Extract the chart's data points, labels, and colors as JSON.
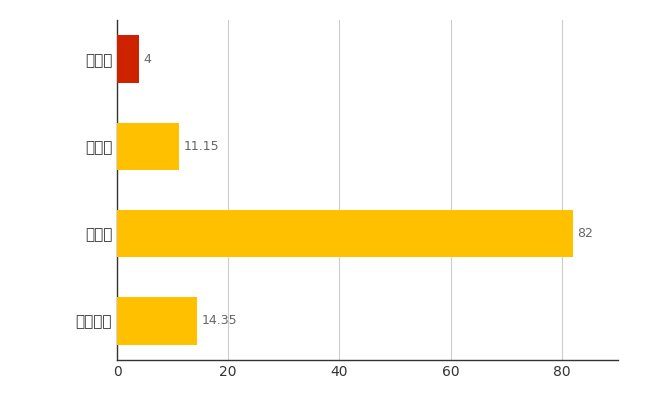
{
  "categories": [
    "全国平均",
    "県最大",
    "県平均",
    "階上町"
  ],
  "values": [
    14.35,
    82,
    11.15,
    4
  ],
  "bar_colors": [
    "#FFC000",
    "#FFC000",
    "#FFC000",
    "#CC2200"
  ],
  "value_labels": [
    "14.35",
    "82",
    "11.15",
    "4"
  ],
  "xlim": [
    0,
    90
  ],
  "xticks": [
    0,
    20,
    40,
    60,
    80
  ],
  "background_color": "#FFFFFF",
  "grid_color": "#CCCCCC",
  "bar_height": 0.55
}
